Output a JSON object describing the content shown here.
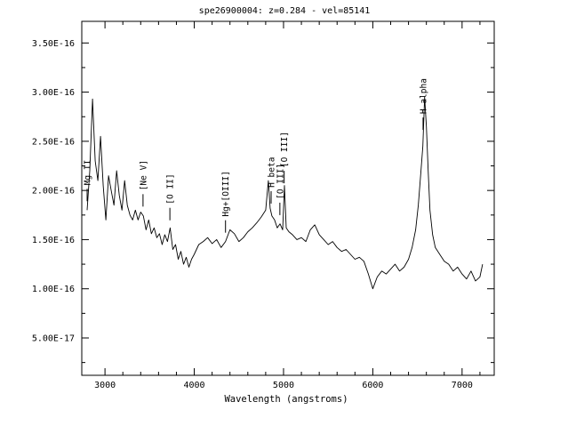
{
  "chart_data": {
    "type": "line",
    "title": "spe26900004: z=0.284 - vel=85141",
    "xlabel": "Wavelength (angstroms)",
    "ylabel": "",
    "xlim": [
      2740,
      7360
    ],
    "ylim": [
      1.2e-17,
      3.72e-16
    ],
    "x_ticks": [
      3000,
      4000,
      5000,
      6000,
      7000
    ],
    "x_tick_labels": [
      "3000",
      "4000",
      "5000",
      "6000",
      "7000"
    ],
    "y_ticks": [
      5e-17,
      1e-16,
      1.5e-16,
      2e-16,
      2.5e-16,
      3e-16,
      3.5e-16
    ],
    "y_tick_labels": [
      "5.00E-17",
      "1.00E-16",
      "1.50E-16",
      "2.00E-16",
      "2.50E-16",
      "3.00E-16",
      "3.50E-16"
    ],
    "grid": false,
    "series": [
      {
        "x": [
          2800,
          2830,
          2860,
          2890,
          2920,
          2950,
          2980,
          3010,
          3040,
          3070,
          3100,
          3130,
          3160,
          3190,
          3220,
          3250,
          3280,
          3310,
          3340,
          3370,
          3400,
          3430,
          3460,
          3490,
          3520,
          3550,
          3580,
          3610,
          3640,
          3670,
          3700,
          3730,
          3760,
          3790,
          3820,
          3850,
          3880,
          3910,
          3940,
          3970,
          4000,
          4050,
          4100,
          4150,
          4200,
          4250,
          4300,
          4350,
          4400,
          4450,
          4500,
          4550,
          4600,
          4650,
          4700,
          4750,
          4800,
          4830,
          4850,
          4870,
          4900,
          4930,
          4960,
          4990,
          5010,
          5030,
          5060,
          5100,
          5150,
          5200,
          5250,
          5300,
          5350,
          5400,
          5450,
          5500,
          5550,
          5600,
          5650,
          5700,
          5750,
          5800,
          5850,
          5900,
          5950,
          6000,
          6050,
          6100,
          6150,
          6200,
          6250,
          6300,
          6350,
          6400,
          6440,
          6480,
          6510,
          6540,
          6560,
          6580,
          6600,
          6620,
          6640,
          6670,
          6700,
          6750,
          6800,
          6850,
          6900,
          6950,
          7000,
          7050,
          7100,
          7150,
          7200,
          7230
        ],
        "values": [
          1.8e-16,
          2.2e-16,
          2.93e-16,
          2.3e-16,
          2.1e-16,
          2.55e-16,
          2.05e-16,
          1.7e-16,
          2.15e-16,
          2e-16,
          1.85e-16,
          2.2e-16,
          1.95e-16,
          1.8e-16,
          2.1e-16,
          1.85e-16,
          1.75e-16,
          1.7e-16,
          1.8e-16,
          1.7e-16,
          1.78e-16,
          1.74e-16,
          1.6e-16,
          1.7e-16,
          1.56e-16,
          1.62e-16,
          1.52e-16,
          1.56e-16,
          1.45e-16,
          1.55e-16,
          1.48e-16,
          1.62e-16,
          1.4e-16,
          1.45e-16,
          1.3e-16,
          1.38e-16,
          1.25e-16,
          1.32e-16,
          1.22e-16,
          1.3e-16,
          1.35e-16,
          1.45e-16,
          1.48e-16,
          1.52e-16,
          1.46e-16,
          1.5e-16,
          1.42e-16,
          1.48e-16,
          1.6e-16,
          1.56e-16,
          1.48e-16,
          1.52e-16,
          1.58e-16,
          1.62e-16,
          1.67e-16,
          1.73e-16,
          1.8e-16,
          2.1e-16,
          1.82e-16,
          1.74e-16,
          1.7e-16,
          1.62e-16,
          1.66e-16,
          1.6e-16,
          2.05e-16,
          1.62e-16,
          1.58e-16,
          1.55e-16,
          1.5e-16,
          1.52e-16,
          1.48e-16,
          1.6e-16,
          1.65e-16,
          1.55e-16,
          1.5e-16,
          1.45e-16,
          1.48e-16,
          1.42e-16,
          1.38e-16,
          1.4e-16,
          1.35e-16,
          1.3e-16,
          1.32e-16,
          1.28e-16,
          1.15e-16,
          1e-16,
          1.12e-16,
          1.18e-16,
          1.15e-16,
          1.2e-16,
          1.25e-16,
          1.18e-16,
          1.22e-16,
          1.3e-16,
          1.42e-16,
          1.6e-16,
          1.85e-16,
          2.2e-16,
          2.45e-16,
          2.95e-16,
          2.65e-16,
          2.2e-16,
          1.8e-16,
          1.55e-16,
          1.42e-16,
          1.35e-16,
          1.28e-16,
          1.25e-16,
          1.18e-16,
          1.22e-16,
          1.15e-16,
          1.1e-16,
          1.18e-16,
          1.08e-16,
          1.12e-16,
          1.25e-16
        ]
      }
    ],
    "annotations": [
      {
        "label": "Mg II",
        "x": 2800
      },
      {
        "label": "[Ne V]",
        "x": 3426
      },
      {
        "label": "[O II]",
        "x": 3727
      },
      {
        "label": "Hg+[OIII]",
        "x": 4350
      },
      {
        "label": "H beta",
        "x": 4861
      },
      {
        "label": "[O III]",
        "x": 4959
      },
      {
        "label": "[O III]",
        "x": 5007
      },
      {
        "label": "H alpha",
        "x": 6563
      }
    ]
  }
}
